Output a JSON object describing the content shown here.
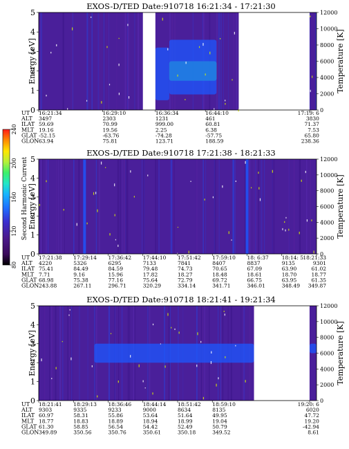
{
  "colorbar": {
    "label": "Second Harmonic Current",
    "ticks": [
      "80",
      "120",
      "160",
      "200",
      "240"
    ],
    "colors": [
      "#000000",
      "#3a0a5a",
      "#4b1a8c",
      "#3a2fd0",
      "#1f6fff",
      "#17b3ff",
      "#22e6c8",
      "#3bf06a",
      "#b6f03a",
      "#ffe600",
      "#ff8a00",
      "#ff1a1a"
    ]
  },
  "chart_data": [
    {
      "type": "heatmap",
      "title": "EXOS-D/TED   Date:910718   16:21:34 - 17:21:30",
      "ylabel": "Energy [eV]",
      "ylim": [
        0,
        5
      ],
      "yticks": [
        "0",
        "1",
        "2",
        "3",
        "4",
        "5"
      ],
      "right_label": "Temperature [K]",
      "right_lim": [
        0,
        12000
      ],
      "right_ticks": [
        "0",
        "2000",
        "4000",
        "6000",
        "8000",
        "10000",
        "12000"
      ],
      "gaps": [
        [
          0.375,
          0.42
        ],
        [
          0.72,
          0.975
        ]
      ],
      "row_labels": [
        "UT",
        "ALT",
        "ILAT",
        "MLT",
        "GLAT",
        "GLON"
      ],
      "columns": [
        [
          "16:21:34",
          "3497",
          "59.69",
          "19.16",
          "-52.15",
          "63.94"
        ],
        [
          "16:29:10",
          "2303",
          "70.99",
          "19.56",
          "-63.76",
          "75.81"
        ],
        [
          "16:36:34",
          "1231",
          "999.00",
          "2.25",
          "-74.28",
          "123.71"
        ],
        [
          "16:44:10",
          "461",
          "60.81",
          "6.38",
          "-57.75",
          "188.59"
        ],
        [
          "17:19: 6",
          "3830",
          "71.37",
          "7.53",
          "65.80",
          "238.36"
        ]
      ],
      "features": [
        {
          "type": "band",
          "xrange": [
            0.42,
            0.47
          ],
          "yrange": [
            0.5,
            3.2
          ],
          "level": "medium"
        },
        {
          "type": "band",
          "xrange": [
            0.47,
            0.64
          ],
          "yrange": [
            1.5,
            2.5
          ],
          "level": "high"
        },
        {
          "type": "band",
          "xrange": [
            0.47,
            0.64
          ],
          "yrange": [
            0.8,
            3.6
          ],
          "level": "medium"
        }
      ]
    },
    {
      "type": "heatmap",
      "title": "EXOS-D/TED   Date:910718   17:21:38 - 18:21:33",
      "ylabel": "Energy [eV]",
      "ylim": [
        0,
        5
      ],
      "yticks": [
        "0",
        "1",
        "2",
        "3",
        "4",
        "5"
      ],
      "right_label": "Temperature [K]",
      "right_lim": [
        0,
        12000
      ],
      "right_ticks": [
        "0",
        "2000",
        "4000",
        "6000",
        "8000",
        "10000",
        "12000"
      ],
      "gaps": [],
      "row_labels": [
        "UT",
        "ALT",
        "ILAT",
        "MLT",
        "GLAT",
        "GLON"
      ],
      "columns": [
        [
          "17:21:38",
          "4220",
          "75.41",
          "7.71",
          "68.98",
          "243.88"
        ],
        [
          "17:29:14",
          "5326",
          "84.49",
          "9.16",
          "75.38",
          "267.11"
        ],
        [
          "17:36:42",
          "6295",
          "84.59",
          "15.96",
          "77.16",
          "296.71"
        ],
        [
          "17:44:10",
          "7133",
          "79.48",
          "17.82",
          "75.64",
          "320.29"
        ],
        [
          "17:51:42",
          "7841",
          "74.73",
          "18.27",
          "72.79",
          "334.14"
        ],
        [
          "17:59:10",
          "8407",
          "70.65",
          "18.48",
          "69.72",
          "341.71"
        ],
        [
          "18: 6:37",
          "8837",
          "67.09",
          "18.61",
          "66.75",
          "346.01"
        ],
        [
          "18:14: 5",
          "9135",
          "63.90",
          "18.70",
          "63.95",
          "348.49"
        ],
        [
          "18:21:33",
          "9301",
          "61.02",
          "18.77",
          "61.35",
          "349.87"
        ]
      ],
      "features": [
        {
          "type": "vline",
          "xpos": 0.165,
          "level": "medium"
        },
        {
          "type": "vline",
          "xpos": 0.75,
          "level": "medium"
        }
      ]
    },
    {
      "type": "heatmap",
      "title": "EXOS-D/TED   Date:910718   18:21:41 - 19:21:34",
      "ylabel": "Energy [eV]",
      "ylim": [
        0,
        5
      ],
      "yticks": [
        "0",
        "1",
        "2",
        "3",
        "4",
        "5"
      ],
      "right_label": "Temperature [K]",
      "right_lim": [
        0,
        12000
      ],
      "right_ticks": [
        "0",
        "2000",
        "4000",
        "6000",
        "8000",
        "10000",
        "12000"
      ],
      "gaps": [
        [
          0.775,
          0.975
        ]
      ],
      "row_labels": [
        "UT",
        "ALT",
        "ILAT",
        "MLT",
        "GLAT",
        "GLON"
      ],
      "columns": [
        [
          "18:21:41",
          "9303",
          "60.97",
          "18.77",
          "61.30",
          "349.89"
        ],
        [
          "18:29:13",
          "9335",
          "58.31",
          "18.83",
          "58.85",
          "350.56"
        ],
        [
          "18:36:46",
          "9233",
          "55.86",
          "18.89",
          "56.54",
          "350.76"
        ],
        [
          "18:44:14",
          "9000",
          "53.64",
          "18.94",
          "54.42",
          "350.61"
        ],
        [
          "18:51:42",
          "8634",
          "51.64",
          "18.99",
          "52.49",
          "350.18"
        ],
        [
          "18:59:10",
          "8135",
          "49.95",
          "19.04",
          "50.79",
          "349.52"
        ],
        [
          "19:20: 6",
          "6020",
          "47.72",
          "19.20",
          "-42.94",
          "8.61"
        ]
      ],
      "features": [
        {
          "type": "band",
          "xrange": [
            0.2,
            0.775
          ],
          "yrange": [
            2.0,
            3.0
          ],
          "level": "medium"
        },
        {
          "type": "band",
          "xrange": [
            0.975,
            1.0
          ],
          "yrange": [
            2.5,
            3.0
          ],
          "level": "medium"
        }
      ]
    }
  ]
}
